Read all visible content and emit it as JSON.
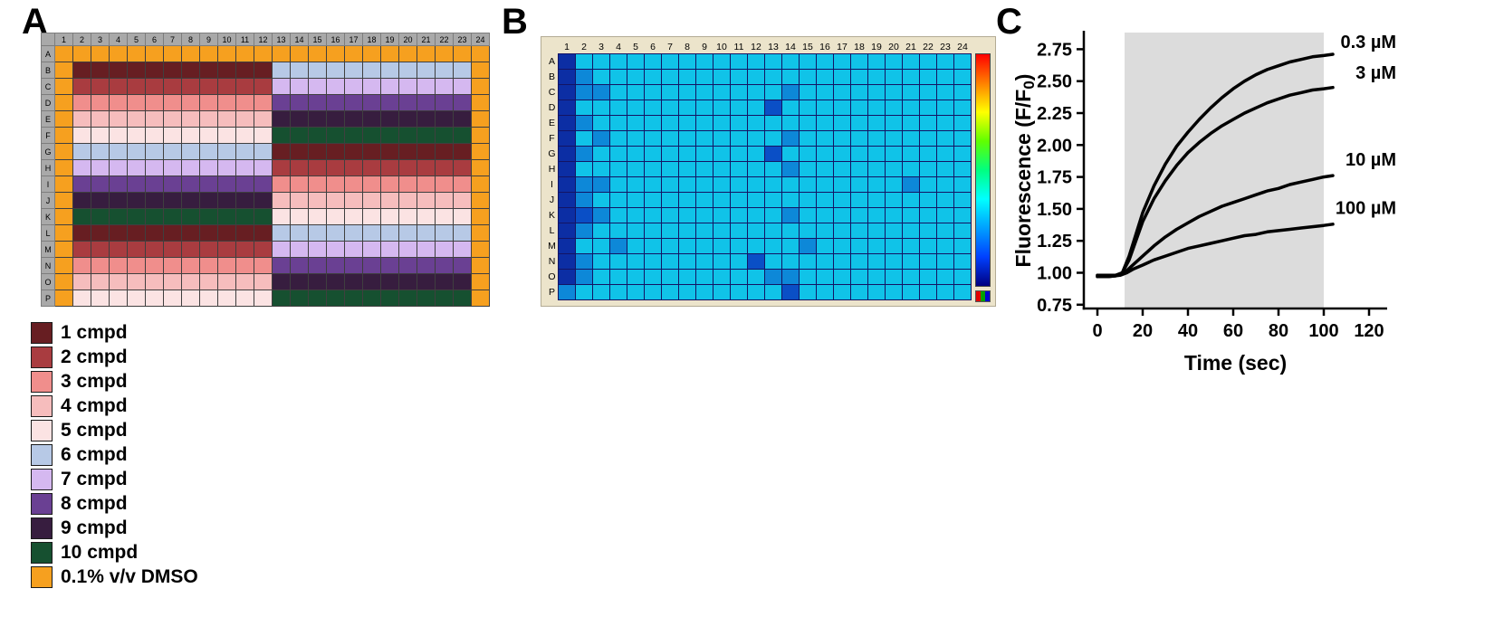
{
  "panels": {
    "a": {
      "label": "A"
    },
    "b": {
      "label": "B"
    },
    "c": {
      "label": "C"
    }
  },
  "plate_a": {
    "col_headers": [
      "1",
      "2",
      "3",
      "4",
      "5",
      "6",
      "7",
      "8",
      "9",
      "10",
      "11",
      "12",
      "13",
      "14",
      "15",
      "16",
      "17",
      "18",
      "19",
      "20",
      "21",
      "22",
      "23",
      "24"
    ],
    "row_headers": [
      "A",
      "B",
      "C",
      "D",
      "E",
      "F",
      "G",
      "H",
      "I",
      "J",
      "K",
      "L",
      "M",
      "N",
      "O",
      "P"
    ],
    "left_compounds": [
      1,
      2,
      3,
      4,
      5,
      6,
      7,
      8,
      9,
      10,
      1,
      2,
      3,
      4,
      5
    ],
    "right_compounds": [
      6,
      7,
      8,
      9,
      10,
      1,
      2,
      3,
      4,
      5,
      6,
      7,
      8,
      9,
      10
    ],
    "dmso_row": "A",
    "dmso_columns": [
      1,
      24
    ]
  },
  "legend": {
    "items": [
      {
        "key": "1",
        "label": "1 cmpd",
        "color": "#671e22"
      },
      {
        "key": "2",
        "label": "2 cmpd",
        "color": "#a93c40"
      },
      {
        "key": "3",
        "label": "3 cmpd",
        "color": "#f08e8c"
      },
      {
        "key": "4",
        "label": "4 cmpd",
        "color": "#f6bdbd"
      },
      {
        "key": "5",
        "label": "5 cmpd",
        "color": "#fbe3e3"
      },
      {
        "key": "6",
        "label": "6 cmpd",
        "color": "#b7c9e6"
      },
      {
        "key": "7",
        "label": "7 cmpd",
        "color": "#d5b8f0"
      },
      {
        "key": "8",
        "label": "8 cmpd",
        "color": "#6a4093"
      },
      {
        "key": "9",
        "label": "9 cmpd",
        "color": "#371d3f"
      },
      {
        "key": "10",
        "label": "10 cmpd",
        "color": "#165030"
      },
      {
        "key": "dmso",
        "label": "0.1% v/v DMSO",
        "color": "#f6a01f"
      }
    ]
  },
  "heatmap_b": {
    "col_headers": [
      "1",
      "2",
      "3",
      "4",
      "5",
      "6",
      "7",
      "8",
      "9",
      "10",
      "11",
      "12",
      "13",
      "14",
      "15",
      "16",
      "17",
      "18",
      "19",
      "20",
      "21",
      "22",
      "23",
      "24"
    ],
    "row_headers": [
      "A",
      "B",
      "C",
      "D",
      "E",
      "F",
      "G",
      "H",
      "I",
      "J",
      "K",
      "L",
      "M",
      "N",
      "O",
      "P"
    ],
    "palette": {
      "c": "#10c3e8",
      "b": "#0d88d8",
      "d": "#0a4fc6",
      "n": "#0c2ea4"
    },
    "grid": [
      "nccccccccccccccccccccccc",
      "nbcccccccccccccccccccccc",
      "nbbccccccccccbcccccccccc",
      "ncccccccccccdccccccccccc",
      "nbcccccccccccccccccccccc",
      "ncbccccccccccbcccccccccc",
      "nbccccccccccdccccccccccc",
      "nccccccccccccbcccccccccc",
      "nbbcccccccccccccccccbccc",
      "nbcccccccccccccccccccccc",
      "ndbccccccccccbcccccccccc",
      "nbcccccccccccccccccccccc",
      "nccbccccccccccbccccccccc",
      "nbcccccccccdcccccccccccc",
      "nbccccccccccbbcccccccccc",
      "bccccccccccccdcccccccccc"
    ],
    "scale_colors": [
      "#ff0000",
      "#ff8000",
      "#ffff00",
      "#60ff00",
      "#00ff80",
      "#00ffff",
      "#00a0ff",
      "#0040ff",
      "#000080"
    ],
    "icon_colors": [
      "#e00000",
      "#00a000",
      "#0000d0"
    ]
  },
  "chart_data": {
    "type": "line",
    "title": "",
    "xlabel": "Time (sec)",
    "ylabel": "Fluorescence (F/F0)",
    "ylabel_parts": {
      "pre": "Fluorescence (F/F",
      "sub": "0",
      "post": ")"
    },
    "xlim": [
      -6,
      128
    ],
    "ylim": [
      0.72,
      2.88
    ],
    "xticks": [
      0,
      20,
      40,
      60,
      80,
      100,
      120
    ],
    "yticks": [
      0.75,
      1.0,
      1.25,
      1.5,
      1.75,
      2.0,
      2.25,
      2.5,
      2.75
    ],
    "grid": false,
    "shaded_region": {
      "x0": 12,
      "x1": 100,
      "color": "#dcdcdc"
    },
    "line_color": "#000000",
    "series": [
      {
        "name": "0.3 µM",
        "x": [
          0,
          4,
          8,
          11,
          14,
          17,
          20,
          25,
          30,
          35,
          40,
          45,
          50,
          55,
          60,
          65,
          70,
          75,
          80,
          85,
          90,
          95,
          100,
          104
        ],
        "y": [
          0.98,
          0.98,
          0.98,
          1.0,
          1.13,
          1.3,
          1.47,
          1.68,
          1.85,
          1.99,
          2.1,
          2.2,
          2.29,
          2.37,
          2.44,
          2.5,
          2.55,
          2.59,
          2.62,
          2.65,
          2.67,
          2.69,
          2.7,
          2.71
        ],
        "label_x": 128,
        "label_y": 2.76
      },
      {
        "name": "3 µM",
        "x": [
          0,
          4,
          8,
          11,
          14,
          17,
          20,
          25,
          30,
          35,
          40,
          45,
          50,
          55,
          60,
          65,
          70,
          75,
          80,
          85,
          90,
          95,
          100,
          104
        ],
        "y": [
          0.97,
          0.97,
          0.975,
          1.0,
          1.1,
          1.25,
          1.4,
          1.58,
          1.72,
          1.84,
          1.94,
          2.02,
          2.09,
          2.15,
          2.2,
          2.25,
          2.29,
          2.33,
          2.36,
          2.39,
          2.41,
          2.43,
          2.44,
          2.45
        ],
        "label_x": 128,
        "label_y": 2.52
      },
      {
        "name": "10 µM",
        "x": [
          0,
          5,
          9,
          12,
          15,
          20,
          25,
          30,
          35,
          40,
          45,
          50,
          55,
          60,
          65,
          70,
          75,
          80,
          85,
          90,
          95,
          100,
          104
        ],
        "y": [
          0.98,
          0.98,
          0.98,
          1.0,
          1.05,
          1.13,
          1.21,
          1.28,
          1.34,
          1.39,
          1.44,
          1.48,
          1.52,
          1.55,
          1.58,
          1.61,
          1.64,
          1.66,
          1.69,
          1.71,
          1.73,
          1.75,
          1.76
        ],
        "label_x": 128,
        "label_y": 1.84
      },
      {
        "name": "100 µM",
        "x": [
          0,
          5,
          10,
          13,
          16,
          20,
          25,
          30,
          35,
          40,
          45,
          50,
          55,
          60,
          65,
          70,
          75,
          80,
          85,
          90,
          95,
          100,
          104
        ],
        "y": [
          0.97,
          0.97,
          0.98,
          1.0,
          1.03,
          1.06,
          1.1,
          1.13,
          1.16,
          1.19,
          1.21,
          1.23,
          1.25,
          1.27,
          1.29,
          1.3,
          1.32,
          1.33,
          1.34,
          1.35,
          1.36,
          1.37,
          1.38
        ],
        "label_x": 128,
        "label_y": 1.46
      }
    ]
  }
}
